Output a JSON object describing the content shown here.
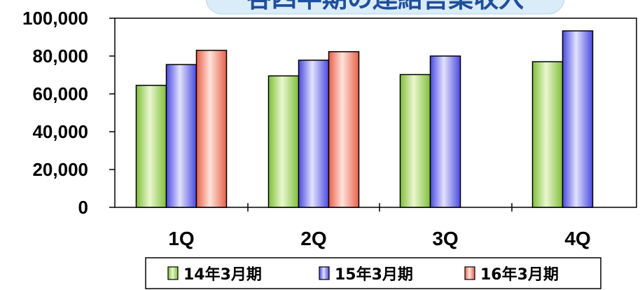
{
  "chart_data": {
    "type": "bar",
    "title": "各四半期の連結営業収入",
    "categories": [
      "1Q",
      "2Q",
      "3Q",
      "4Q"
    ],
    "series": [
      {
        "name": "14年3月期",
        "values": [
          64500,
          69500,
          70200,
          77000
        ],
        "color": "#b6e07a"
      },
      {
        "name": "15年3月期",
        "values": [
          75500,
          77800,
          80000,
          93300
        ],
        "color": "#8c8cf2"
      },
      {
        "name": "16年3月期",
        "values": [
          83000,
          82300,
          null,
          null
        ],
        "color": "#f7a08a"
      }
    ],
    "ylim": [
      0,
      100000
    ],
    "yticks": [
      "0",
      "20,000",
      "40,000",
      "60,000",
      "80,000",
      "100,000"
    ],
    "ytick_values": [
      0,
      20000,
      40000,
      60000,
      80000,
      100000
    ],
    "xlabel": "",
    "ylabel": "",
    "legend_position": "bottom",
    "grid": false
  }
}
